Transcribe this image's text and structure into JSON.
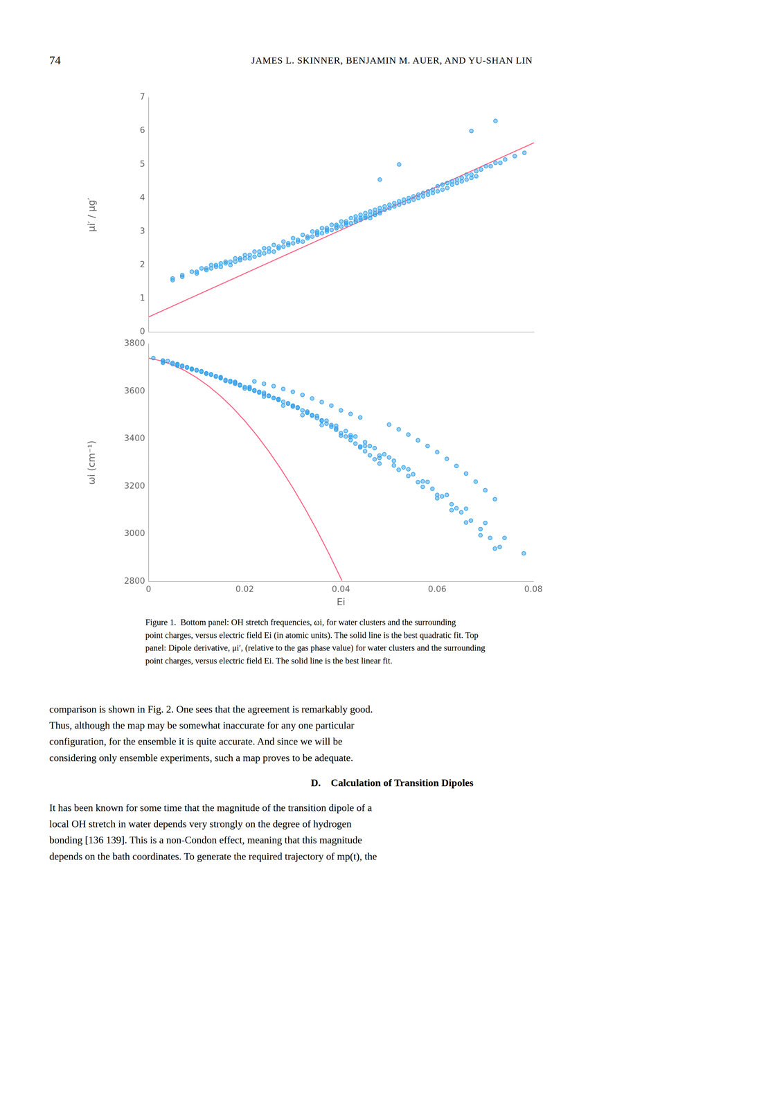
{
  "chart_data": [
    {
      "type": "scatter",
      "ylabel": "μi′ / μg′",
      "xlim": [
        0,
        0.08
      ],
      "ylim": [
        0,
        7
      ],
      "xticks": [
        0,
        0.02,
        0.04,
        0.06,
        0.08
      ],
      "yticks": [
        0,
        1,
        2,
        3,
        4,
        5,
        6,
        7
      ],
      "tick_labels": "y",
      "grid": false,
      "series": [
        {
          "type": "scatter",
          "marker": "circle",
          "x": [
            0.005,
            0.007,
            0.01,
            0.012,
            0.013,
            0.014,
            0.015,
            0.016,
            0.017,
            0.018,
            0.019,
            0.02,
            0.021,
            0.022,
            0.023,
            0.024,
            0.025,
            0.026,
            0.027,
            0.028,
            0.029,
            0.03,
            0.031,
            0.032,
            0.033,
            0.034,
            0.035,
            0.036,
            0.037,
            0.038,
            0.039,
            0.04,
            0.041,
            0.042,
            0.043,
            0.044,
            0.045,
            0.046,
            0.047,
            0.048,
            0.005,
            0.007,
            0.009,
            0.011,
            0.013,
            0.015,
            0.017,
            0.019,
            0.021,
            0.023,
            0.025,
            0.027,
            0.029,
            0.031,
            0.033,
            0.035,
            0.037,
            0.039,
            0.041,
            0.043,
            0.044,
            0.045,
            0.046,
            0.047,
            0.048,
            0.049,
            0.05,
            0.051,
            0.052,
            0.053,
            0.054,
            0.055,
            0.056,
            0.057,
            0.058,
            0.059,
            0.06,
            0.061,
            0.062,
            0.063,
            0.064,
            0.065,
            0.066,
            0.067,
            0.068,
            0.035,
            0.037,
            0.039,
            0.041,
            0.043,
            0.045,
            0.047,
            0.049,
            0.051,
            0.053,
            0.055,
            0.057,
            0.059,
            0.061,
            0.063,
            0.065,
            0.067,
            0.069,
            0.071,
            0.073,
            0.01,
            0.012,
            0.014,
            0.016,
            0.018,
            0.02,
            0.022,
            0.024,
            0.026,
            0.028,
            0.03,
            0.032,
            0.034,
            0.036,
            0.038,
            0.04,
            0.042,
            0.044,
            0.046,
            0.048,
            0.05,
            0.052,
            0.054,
            0.056,
            0.058,
            0.06,
            0.062,
            0.064,
            0.066,
            0.068,
            0.07,
            0.072,
            0.074,
            0.076,
            0.078,
            0.067,
            0.072,
            0.052,
            0.048
          ],
          "values": [
            1.55,
            1.65,
            1.75,
            1.85,
            1.9,
            1.95,
            1.95,
            2.05,
            2.0,
            2.1,
            2.15,
            2.2,
            2.2,
            2.25,
            2.3,
            2.35,
            2.4,
            2.4,
            2.5,
            2.55,
            2.6,
            2.65,
            2.7,
            2.7,
            2.8,
            2.85,
            2.9,
            2.95,
            3.0,
            3.05,
            3.1,
            3.15,
            3.2,
            3.25,
            3.3,
            3.35,
            3.4,
            3.4,
            3.5,
            3.55,
            1.6,
            1.7,
            1.8,
            1.9,
            2.0,
            2.05,
            2.1,
            2.2,
            2.3,
            2.4,
            2.5,
            2.55,
            2.65,
            2.75,
            2.85,
            2.95,
            3.05,
            3.15,
            3.25,
            3.35,
            3.4,
            3.45,
            3.5,
            3.55,
            3.6,
            3.65,
            3.7,
            3.75,
            3.8,
            3.85,
            3.9,
            3.95,
            4.0,
            4.05,
            4.1,
            4.15,
            4.2,
            4.25,
            4.3,
            4.4,
            4.45,
            4.5,
            4.55,
            4.6,
            4.65,
            3.0,
            3.1,
            3.2,
            3.3,
            3.45,
            3.55,
            3.65,
            3.75,
            3.85,
            3.95,
            4.05,
            4.15,
            4.25,
            4.4,
            4.5,
            4.6,
            4.7,
            4.85,
            4.95,
            5.05,
            1.8,
            1.9,
            2.0,
            2.1,
            2.2,
            2.3,
            2.4,
            2.5,
            2.6,
            2.7,
            2.8,
            2.9,
            3.0,
            3.1,
            3.2,
            3.3,
            3.4,
            3.5,
            3.6,
            3.7,
            3.8,
            3.9,
            4.0,
            4.1,
            4.2,
            4.35,
            4.45,
            4.55,
            4.7,
            4.8,
            4.95,
            5.05,
            5.15,
            5.25,
            5.35,
            6.0,
            6.3,
            5.0,
            4.55
          ]
        },
        {
          "type": "line",
          "line_style": "solid",
          "x": [
            0,
            0.08
          ],
          "values": [
            0.45,
            5.65
          ]
        }
      ]
    },
    {
      "type": "scatter",
      "xlabel": "Ei",
      "ylabel": "ωi (cm⁻¹)",
      "xlim": [
        0,
        0.08
      ],
      "ylim": [
        2800,
        3800
      ],
      "xticks": [
        0,
        0.02,
        0.04,
        0.06,
        0.08
      ],
      "yticks": [
        2800,
        3000,
        3200,
        3400,
        3600,
        3800
      ],
      "grid": false,
      "series": [
        {
          "type": "scatter",
          "marker": "circle",
          "x": [
            0.001,
            0.003,
            0.005,
            0.006,
            0.007,
            0.008,
            0.009,
            0.01,
            0.011,
            0.012,
            0.013,
            0.014,
            0.015,
            0.016,
            0.017,
            0.018,
            0.019,
            0.02,
            0.021,
            0.022,
            0.023,
            0.024,
            0.025,
            0.026,
            0.027,
            0.028,
            0.029,
            0.03,
            0.031,
            0.032,
            0.033,
            0.034,
            0.035,
            0.036,
            0.037,
            0.038,
            0.039,
            0.04,
            0.041,
            0.042,
            0.043,
            0.044,
            0.045,
            0.046,
            0.047,
            0.048,
            0.003,
            0.005,
            0.007,
            0.009,
            0.011,
            0.013,
            0.015,
            0.017,
            0.019,
            0.021,
            0.023,
            0.025,
            0.027,
            0.029,
            0.031,
            0.033,
            0.035,
            0.037,
            0.039,
            0.041,
            0.043,
            0.045,
            0.047,
            0.049,
            0.051,
            0.053,
            0.055,
            0.057,
            0.059,
            0.061,
            0.063,
            0.065,
            0.067,
            0.069,
            0.071,
            0.073,
            0.003,
            0.006,
            0.009,
            0.012,
            0.015,
            0.018,
            0.021,
            0.024,
            0.027,
            0.03,
            0.033,
            0.036,
            0.039,
            0.042,
            0.045,
            0.048,
            0.051,
            0.054,
            0.057,
            0.06,
            0.063,
            0.066,
            0.069,
            0.072,
            0.006,
            0.01,
            0.014,
            0.018,
            0.022,
            0.026,
            0.03,
            0.034,
            0.038,
            0.042,
            0.046,
            0.05,
            0.054,
            0.058,
            0.062,
            0.066,
            0.07,
            0.074,
            0.078,
            0.004,
            0.008,
            0.012,
            0.016,
            0.02,
            0.024,
            0.028,
            0.032,
            0.036,
            0.04,
            0.044,
            0.048,
            0.052,
            0.056,
            0.06,
            0.064,
            0.04,
            0.042,
            0.044,
            0.038,
            0.036,
            0.034,
            0.032,
            0.03,
            0.028,
            0.026,
            0.024,
            0.022,
            0.05,
            0.052,
            0.054,
            0.056,
            0.058,
            0.06,
            0.062,
            0.064,
            0.066,
            0.068,
            0.07,
            0.072
          ],
          "values": [
            3740,
            3730,
            3720,
            3715,
            3708,
            3700,
            3695,
            3690,
            3682,
            3675,
            3670,
            3662,
            3655,
            3648,
            3640,
            3632,
            3625,
            3618,
            3610,
            3602,
            3595,
            3588,
            3580,
            3572,
            3564,
            3556,
            3548,
            3540,
            3530,
            3520,
            3510,
            3500,
            3488,
            3476,
            3464,
            3451,
            3438,
            3424,
            3410,
            3395,
            3380,
            3364,
            3348,
            3331,
            3314,
            3296,
            3725,
            3715,
            3705,
            3695,
            3685,
            3672,
            3658,
            3644,
            3628,
            3613,
            3598,
            3582,
            3566,
            3550,
            3533,
            3515,
            3496,
            3476,
            3455,
            3433,
            3410,
            3386,
            3361,
            3335,
            3308,
            3280,
            3251,
            3221,
            3190,
            3158,
            3125,
            3091,
            3056,
            3020,
            2983,
            2945,
            3720,
            3708,
            3692,
            3676,
            3660,
            3640,
            3618,
            3594,
            3568,
            3540,
            3510,
            3478,
            3444,
            3408,
            3370,
            3330,
            3288,
            3244,
            3198,
            3150,
            3100,
            3048,
            2994,
            2938,
            3712,
            3688,
            3664,
            3636,
            3605,
            3572,
            3536,
            3498,
            3458,
            3415,
            3370,
            3322,
            3272,
            3219,
            3164,
            3106,
            3046,
            2983,
            2918,
            3728,
            3702,
            3674,
            3644,
            3612,
            3578,
            3540,
            3500,
            3458,
            3414,
            3368,
            3320,
            3270,
            3218,
            3164,
            3108,
            3520,
            3505,
            3490,
            3540,
            3555,
            3570,
            3585,
            3598,
            3610,
            3622,
            3632,
            3642,
            3460,
            3440,
            3418,
            3394,
            3370,
            3344,
            3316,
            3286,
            3254,
            3220,
            3184,
            3146
          ]
        },
        {
          "type": "line",
          "line_style": "solid",
          "x": [
            0,
            0.0025,
            0.005,
            0.0075,
            0.01,
            0.0125,
            0.015,
            0.0175,
            0.02,
            0.0225,
            0.025,
            0.0275,
            0.03,
            0.0325,
            0.035,
            0.0375,
            0.04,
            0.0402
          ],
          "values": [
            3740,
            3728.875,
            3711.5,
            3687.875,
            3658,
            3621.875,
            3579.5,
            3530.875,
            3476,
            3414.875,
            3347.5,
            3273.875,
            3194,
            3107.875,
            3015.5,
            2916.875,
            2812,
            2803.34
          ]
        }
      ]
    }
  ],
  "page_header_num": "74",
  "page_header_text": "JAMES L. SKINNER, BENJAMIN M. AUER, AND YU-SHAN LIN",
  "caption_lines": [
    "Figure 1.  Bottom panel: OH stretch frequencies, ωi, for water clusters and the surrounding",
    "point charges, versus electric field Ei (in atomic units). The solid line is the best quadratic fit. Top",
    "panel: Dipole derivative, μi′, (relative to the gas phase value) for water clusters and the surrounding",
    "point charges, versus electric field Ei. The solid line is the best linear fit."
  ],
  "body_text_lines": [
    "comparison is shown in Fig. 2. One sees that the agreement is remarkably good.",
    "Thus, although the map may be somewhat inaccurate for any one particular",
    "configuration, for the ensemble it is quite accurate. And since we will be",
    "considering only ensemble experiments, such a map proves to be adequate."
  ],
  "section_header": "D.    Calculation of Transition Dipoles",
  "body_text2_lines": [
    "It has been known for some time that the magnitude of the transition dipole of a",
    "local OH stretch in water depends very strongly on the degree of hydrogen",
    "bonding [136 139]. This is a non-Condon effect, meaning that this magnitude",
    "depends on the bath coordinates. To generate the required trajectory of mp(t), the"
  ]
}
